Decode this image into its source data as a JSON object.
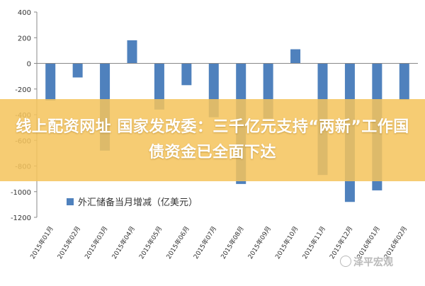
{
  "chart_data": {
    "type": "bar",
    "categories": [
      "2015年01月",
      "2015年02月",
      "2015年03月",
      "2015年04月",
      "2015年05月",
      "2015年06月",
      "2015年07月",
      "2015年08月",
      "2015年09月",
      "2015年10月",
      "2015年11月",
      "2015年12月",
      "2016年01月",
      "2016年02月"
    ],
    "series": [
      {
        "name": "外汇储备当月增减（亿美元）",
        "values": [
          -290,
          -110,
          -680,
          180,
          -360,
          -170,
          -420,
          -940,
          -430,
          110,
          -870,
          -1080,
          -990,
          -285
        ]
      }
    ],
    "ylim": [
      -1200,
      400
    ],
    "yticks": [
      400,
      200,
      0,
      -200,
      -400,
      -600,
      -800,
      -1000,
      -1200
    ],
    "grid": false,
    "legend": "bottom-left",
    "bar_color": "#4f81bd"
  },
  "overlay": {
    "text": "线上配资网址 国家发改委：三千亿元支持“两新”工作国债资金已全面下达"
  },
  "watermark": {
    "text": "泽平宏观"
  }
}
